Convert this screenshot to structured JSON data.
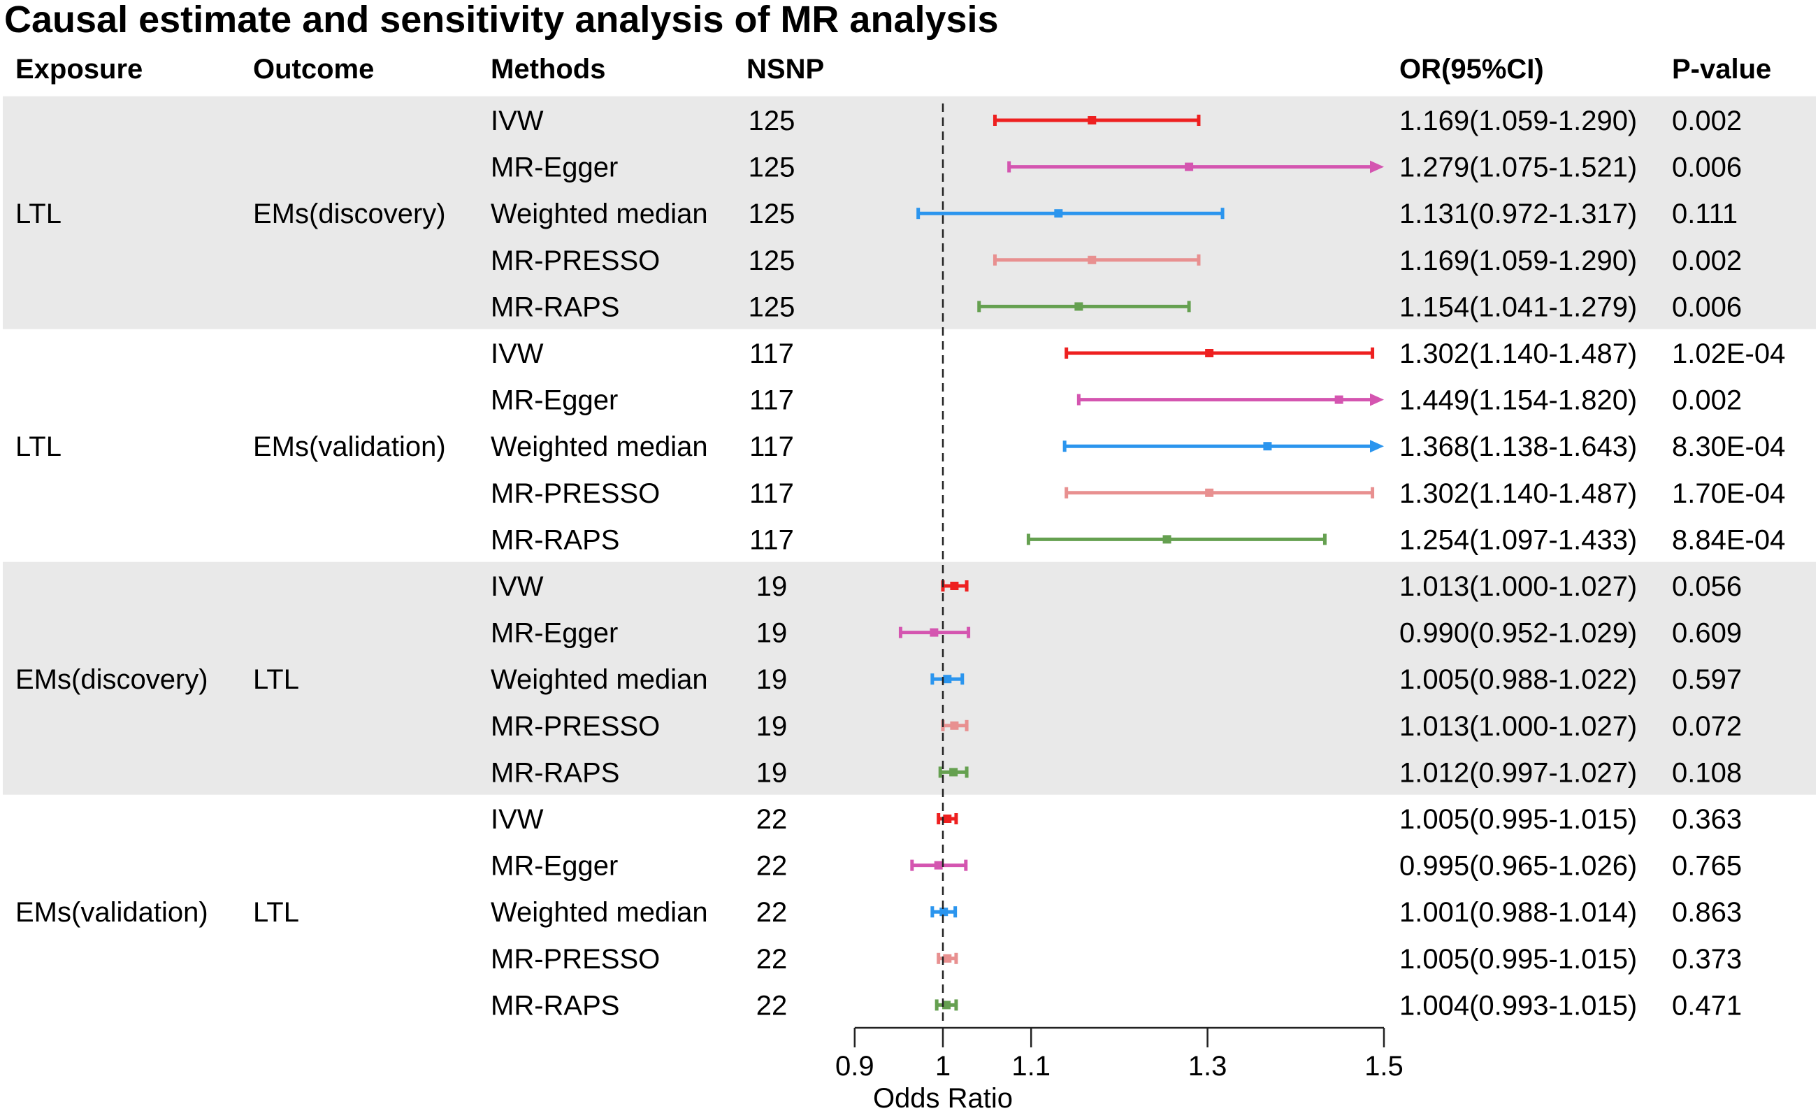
{
  "chart_data": {
    "type": "forest",
    "title": "Causal estimate and sensitivity analysis of MR analysis",
    "columns": {
      "exposure": "Exposure",
      "outcome": "Outcome",
      "methods": "Methods",
      "nsnp": "NSNP",
      "or_ci": "OR(95%CI)",
      "pvalue": "P-value"
    },
    "xlabel": "Odds Ratio",
    "xlim": [
      0.9,
      1.5
    ],
    "xticks": [
      0.9,
      1,
      1.1,
      1.3,
      1.5
    ],
    "xtick_labels": [
      "0.9",
      "1",
      "1.1",
      "1.3",
      "1.5"
    ],
    "reference_line": 1,
    "method_colors": {
      "IVW": "#ee2020",
      "MR-Egger": "#d455b0",
      "Weighted median": "#2b95ee",
      "MR-PRESSO": "#e89090",
      "MR-RAPS": "#65a050"
    },
    "groups": [
      {
        "exposure": "LTL",
        "outcome": "EMs(discovery)",
        "shaded": true,
        "rows": [
          {
            "method": "IVW",
            "nsnp": "125",
            "or": 1.169,
            "lo": 1.059,
            "hi": 1.29,
            "or_ci": "1.169(1.059-1.290)",
            "p": "0.002"
          },
          {
            "method": "MR-Egger",
            "nsnp": "125",
            "or": 1.279,
            "lo": 1.075,
            "hi": 1.521,
            "or_ci": "1.279(1.075-1.521)",
            "p": "0.006"
          },
          {
            "method": "Weighted median",
            "nsnp": "125",
            "or": 1.131,
            "lo": 0.972,
            "hi": 1.317,
            "or_ci": "1.131(0.972-1.317)",
            "p": "0.111"
          },
          {
            "method": "MR-PRESSO",
            "nsnp": "125",
            "or": 1.169,
            "lo": 1.059,
            "hi": 1.29,
            "or_ci": "1.169(1.059-1.290)",
            "p": "0.002"
          },
          {
            "method": "MR-RAPS",
            "nsnp": "125",
            "or": 1.154,
            "lo": 1.041,
            "hi": 1.279,
            "or_ci": "1.154(1.041-1.279)",
            "p": "0.006"
          }
        ]
      },
      {
        "exposure": "LTL",
        "outcome": "EMs(validation)",
        "shaded": false,
        "rows": [
          {
            "method": "IVW",
            "nsnp": "117",
            "or": 1.302,
            "lo": 1.14,
            "hi": 1.487,
            "or_ci": "1.302(1.140-1.487)",
            "p": "1.02E-04"
          },
          {
            "method": "MR-Egger",
            "nsnp": "117",
            "or": 1.449,
            "lo": 1.154,
            "hi": 1.82,
            "or_ci": "1.449(1.154-1.820)",
            "p": "0.002"
          },
          {
            "method": "Weighted median",
            "nsnp": "117",
            "or": 1.368,
            "lo": 1.138,
            "hi": 1.643,
            "or_ci": "1.368(1.138-1.643)",
            "p": "8.30E-04"
          },
          {
            "method": "MR-PRESSO",
            "nsnp": "117",
            "or": 1.302,
            "lo": 1.14,
            "hi": 1.487,
            "or_ci": "1.302(1.140-1.487)",
            "p": "1.70E-04"
          },
          {
            "method": "MR-RAPS",
            "nsnp": "117",
            "or": 1.254,
            "lo": 1.097,
            "hi": 1.433,
            "or_ci": "1.254(1.097-1.433)",
            "p": "8.84E-04"
          }
        ]
      },
      {
        "exposure": "EMs(discovery)",
        "outcome": "LTL",
        "shaded": true,
        "rows": [
          {
            "method": "IVW",
            "nsnp": "19",
            "or": 1.013,
            "lo": 1.0,
            "hi": 1.027,
            "or_ci": "1.013(1.000-1.027)",
            "p": "0.056"
          },
          {
            "method": "MR-Egger",
            "nsnp": "19",
            "or": 0.99,
            "lo": 0.952,
            "hi": 1.029,
            "or_ci": "0.990(0.952-1.029)",
            "p": "0.609"
          },
          {
            "method": "Weighted median",
            "nsnp": "19",
            "or": 1.005,
            "lo": 0.988,
            "hi": 1.022,
            "or_ci": "1.005(0.988-1.022)",
            "p": "0.597"
          },
          {
            "method": "MR-PRESSO",
            "nsnp": "19",
            "or": 1.013,
            "lo": 1.0,
            "hi": 1.027,
            "or_ci": "1.013(1.000-1.027)",
            "p": "0.072"
          },
          {
            "method": "MR-RAPS",
            "nsnp": "19",
            "or": 1.012,
            "lo": 0.997,
            "hi": 1.027,
            "or_ci": "1.012(0.997-1.027)",
            "p": "0.108"
          }
        ]
      },
      {
        "exposure": "EMs(validation)",
        "outcome": "LTL",
        "shaded": false,
        "rows": [
          {
            "method": "IVW",
            "nsnp": "22",
            "or": 1.005,
            "lo": 0.995,
            "hi": 1.015,
            "or_ci": "1.005(0.995-1.015)",
            "p": "0.363"
          },
          {
            "method": "MR-Egger",
            "nsnp": "22",
            "or": 0.995,
            "lo": 0.965,
            "hi": 1.026,
            "or_ci": "0.995(0.965-1.026)",
            "p": "0.765"
          },
          {
            "method": "Weighted median",
            "nsnp": "22",
            "or": 1.001,
            "lo": 0.988,
            "hi": 1.014,
            "or_ci": "1.001(0.988-1.014)",
            "p": "0.863"
          },
          {
            "method": "MR-PRESSO",
            "nsnp": "22",
            "or": 1.005,
            "lo": 0.995,
            "hi": 1.015,
            "or_ci": "1.005(0.995-1.015)",
            "p": "0.373"
          },
          {
            "method": "MR-RAPS",
            "nsnp": "22",
            "or": 1.004,
            "lo": 0.993,
            "hi": 1.015,
            "or_ci": "1.004(0.993-1.015)",
            "p": "0.471"
          }
        ]
      }
    ]
  }
}
